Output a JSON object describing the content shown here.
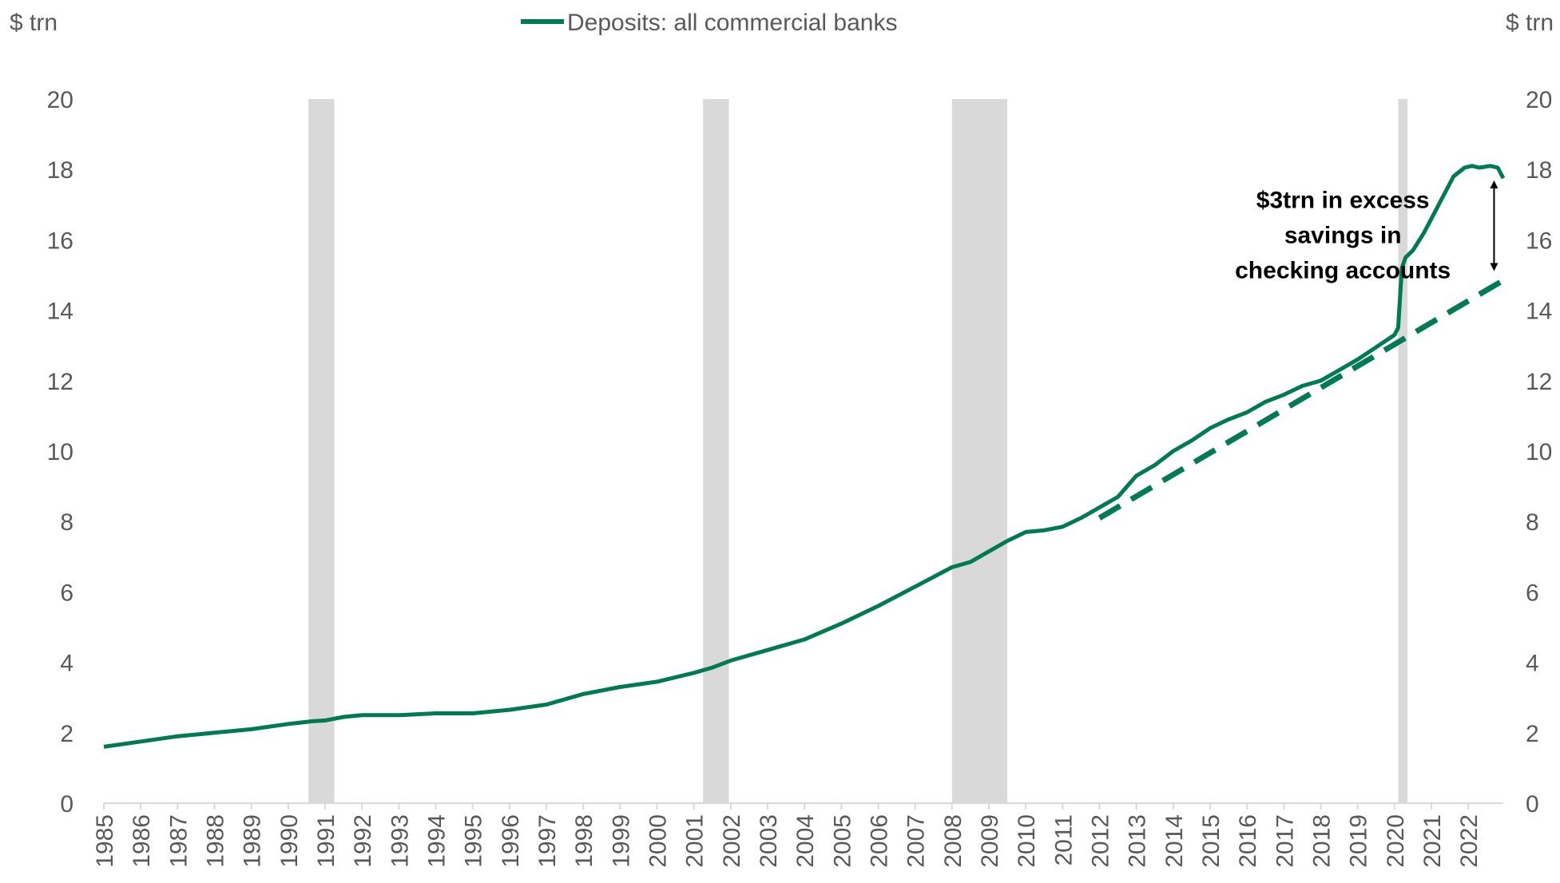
{
  "chart_data": {
    "type": "line",
    "units_left": "$ trn",
    "units_right": "$ trn",
    "legend": [
      {
        "label": "Deposits: all commercial banks",
        "color": "#007a53"
      }
    ],
    "legend_position": "top",
    "grid": false,
    "ylim": [
      0,
      20
    ],
    "yticks": [
      "0",
      "2",
      "4",
      "6",
      "8",
      "10",
      "12",
      "14",
      "16",
      "18",
      "20"
    ],
    "xlim": [
      1985,
      2022.95
    ],
    "xticks": [
      "1985",
      "1986",
      "1987",
      "1988",
      "1989",
      "1990",
      "1991",
      "1992",
      "1993",
      "1994",
      "1995",
      "1996",
      "1997",
      "1998",
      "1999",
      "2000",
      "2001",
      "2002",
      "2003",
      "2004",
      "2005",
      "2006",
      "2007",
      "2008",
      "2009",
      "2010",
      "2011",
      "2012",
      "2013",
      "2014",
      "2015",
      "2016",
      "2017",
      "2018",
      "2019",
      "2020",
      "2021",
      "2022"
    ],
    "recessions": [
      {
        "start": 1990.55,
        "end": 1991.25
      },
      {
        "start": 2001.25,
        "end": 2001.95
      },
      {
        "start": 2008.0,
        "end": 2009.5
      },
      {
        "start": 2020.1,
        "end": 2020.35
      }
    ],
    "recession_color": "#d9d9d9",
    "series": [
      {
        "name": "Deposits: all commercial banks",
        "color": "#007a53",
        "x": [
          1985,
          1986,
          1987,
          1988,
          1989,
          1990,
          1990.7,
          1991,
          1991.5,
          1992,
          1993,
          1994,
          1995,
          1996,
          1997,
          1998,
          1999,
          2000,
          2001,
          2001.5,
          2002,
          2003,
          2004,
          2005,
          2006,
          2007,
          2008,
          2008.5,
          2009,
          2009.5,
          2010,
          2010.5,
          2011,
          2011.5,
          2012,
          2012.5,
          2013,
          2013.5,
          2014,
          2014.5,
          2015,
          2015.5,
          2016,
          2016.5,
          2017,
          2017.5,
          2018,
          2018.5,
          2019,
          2019.5,
          2020,
          2020.1,
          2020.2,
          2020.3,
          2020.5,
          2020.8,
          2021,
          2021.3,
          2021.6,
          2021.9,
          2022.1,
          2022.3,
          2022.6,
          2022.8,
          2022.95
        ],
        "values": [
          1.6,
          1.75,
          1.9,
          2.0,
          2.1,
          2.25,
          2.33,
          2.35,
          2.45,
          2.5,
          2.5,
          2.55,
          2.55,
          2.65,
          2.8,
          3.1,
          3.3,
          3.45,
          3.7,
          3.85,
          4.05,
          4.35,
          4.65,
          5.1,
          5.6,
          6.15,
          6.7,
          6.85,
          7.15,
          7.45,
          7.7,
          7.75,
          7.85,
          8.1,
          8.4,
          8.7,
          9.3,
          9.6,
          10.0,
          10.3,
          10.65,
          10.9,
          11.1,
          11.4,
          11.6,
          11.85,
          12.0,
          12.3,
          12.6,
          12.95,
          13.3,
          13.5,
          15.2,
          15.5,
          15.7,
          16.2,
          16.6,
          17.2,
          17.8,
          18.05,
          18.1,
          18.05,
          18.1,
          18.05,
          17.75
        ]
      },
      {
        "name": "trend",
        "style": "dashed",
        "color": "#007a53",
        "x": [
          2012.0,
          2022.95
        ],
        "values": [
          8.1,
          14.85
        ]
      }
    ],
    "annotations": [
      {
        "lines": [
          "$3trn in excess",
          "savings in",
          "checking accounts"
        ],
        "x": 2018.6,
        "y": 16.9
      },
      {
        "type": "double-arrow",
        "x": 2022.7,
        "y_from": 17.8,
        "y_to": 15.0
      }
    ]
  }
}
